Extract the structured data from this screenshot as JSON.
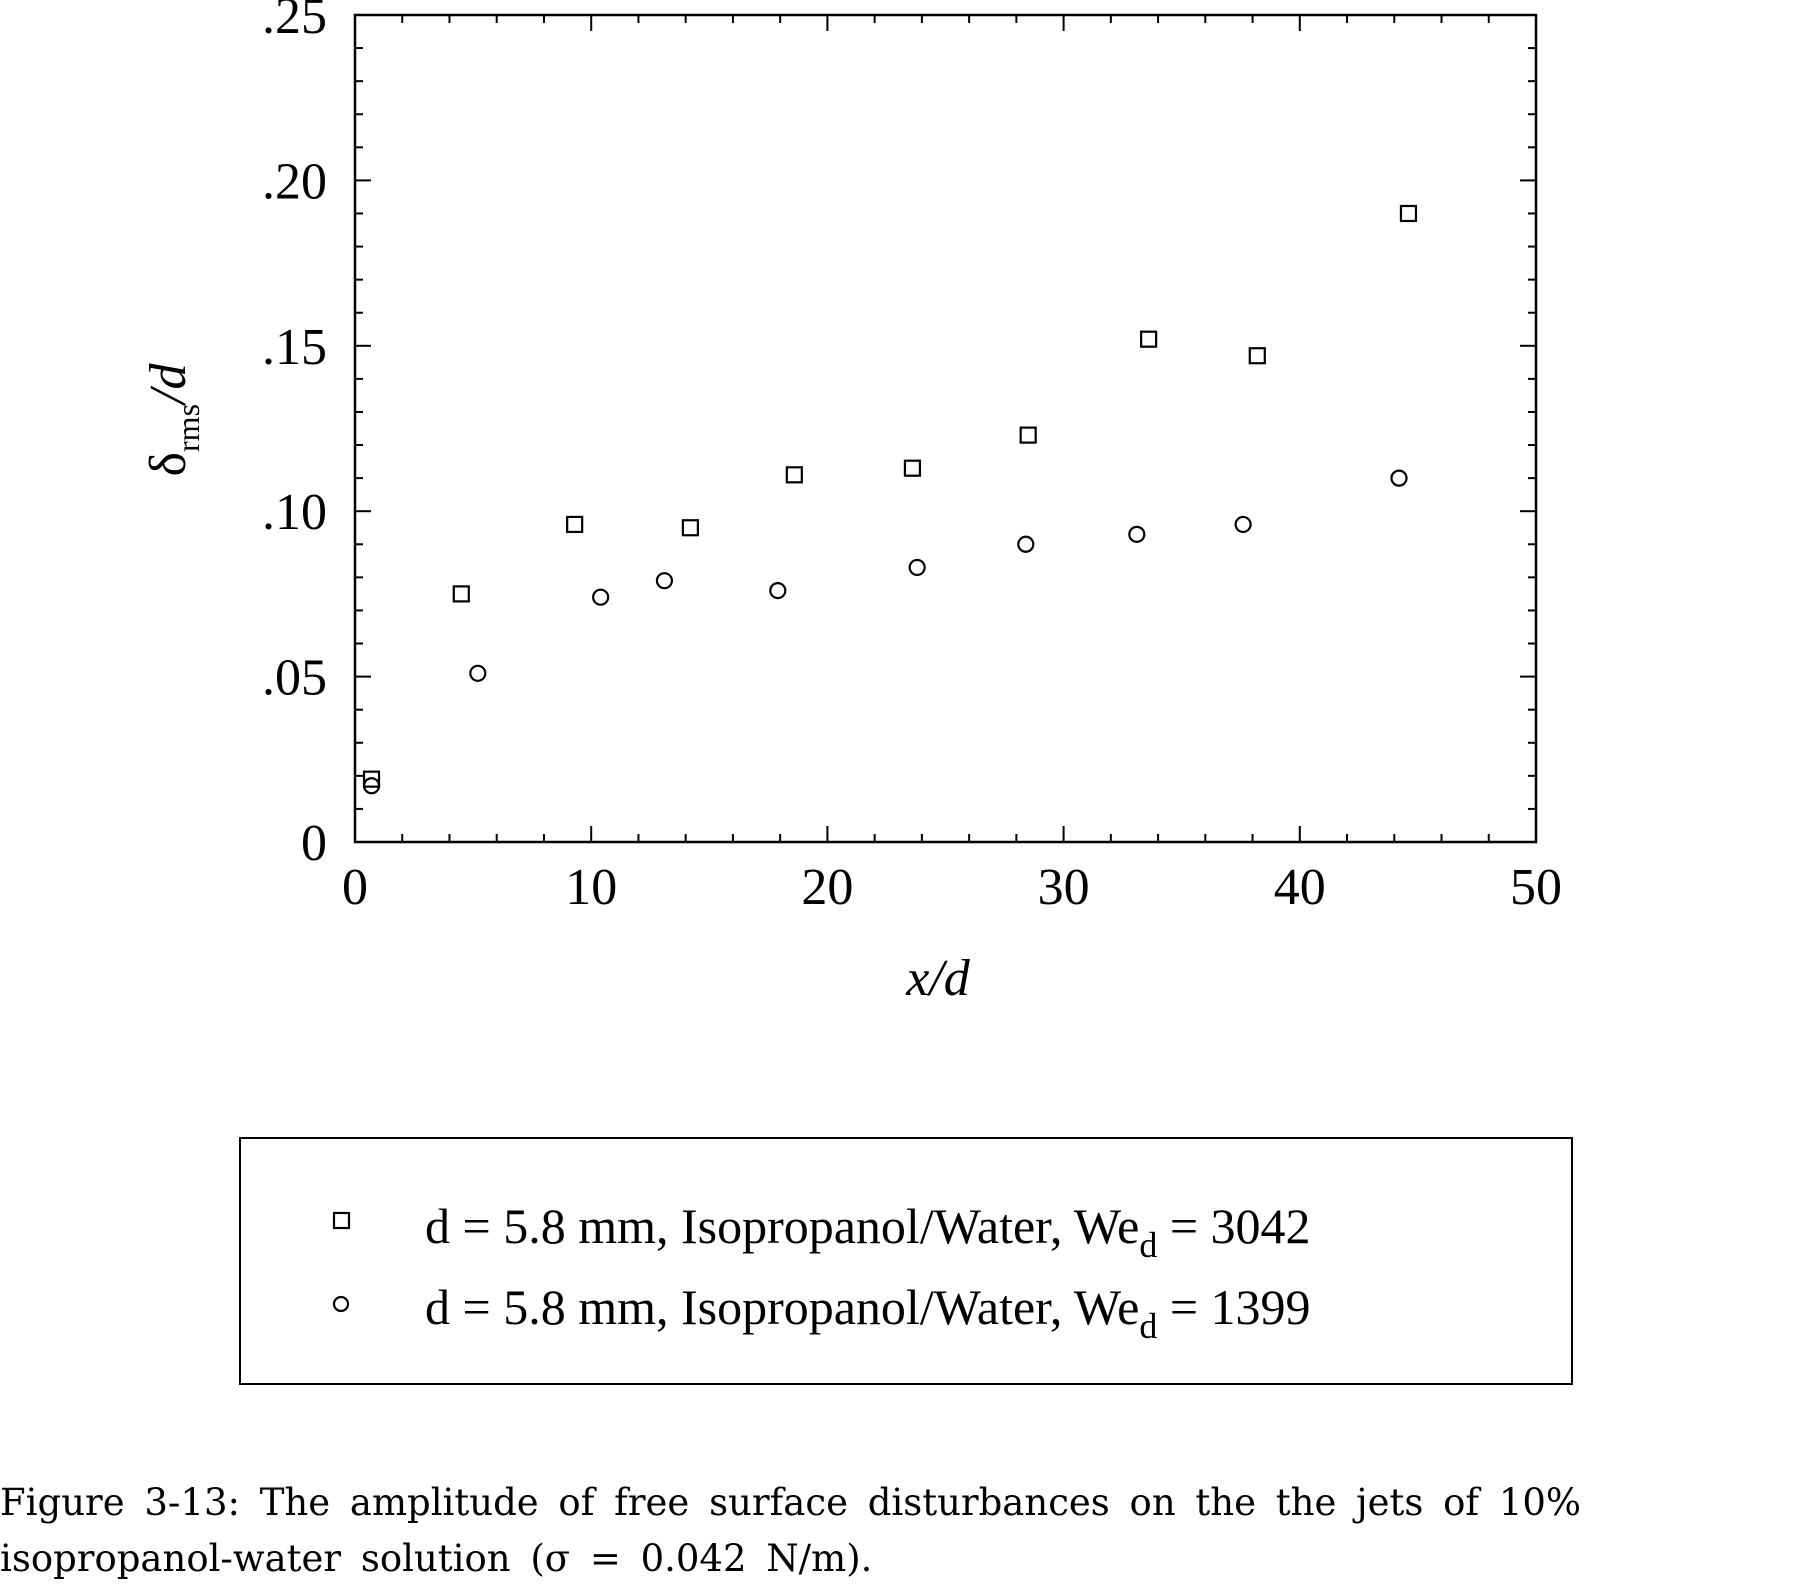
{
  "chart_data": {
    "type": "scatter",
    "xlabel": "x/d",
    "ylabel": {
      "main": "δ",
      "sub": "rms",
      "tail": "/d"
    },
    "xlim": [
      0,
      50
    ],
    "ylim": [
      0,
      0.25
    ],
    "x_ticks": [
      0,
      10,
      20,
      30,
      40,
      50
    ],
    "x_tick_labels": [
      "0",
      "10",
      "20",
      "30",
      "40",
      "50"
    ],
    "y_ticks": [
      0,
      0.05,
      0.1,
      0.15,
      0.2,
      0.25
    ],
    "y_tick_labels": [
      "0",
      ".05",
      ".10",
      ".15",
      ".20",
      ".25"
    ],
    "grid": false,
    "legend_placement": "below plot",
    "series": [
      {
        "marker": "square",
        "legend": {
          "pre": "d = 5.8 mm, Isopropanol/Water, We",
          "sub": "d",
          "post": " = 3042"
        },
        "points": [
          [
            0.7,
            0.019
          ],
          [
            4.5,
            0.075
          ],
          [
            9.3,
            0.096
          ],
          [
            14.2,
            0.095
          ],
          [
            18.6,
            0.111
          ],
          [
            23.6,
            0.113
          ],
          [
            28.5,
            0.123
          ],
          [
            33.6,
            0.152
          ],
          [
            38.2,
            0.147
          ],
          [
            44.6,
            0.19
          ]
        ]
      },
      {
        "marker": "circle",
        "legend": {
          "pre": "d = 5.8 mm, Isopropanol/Water, We",
          "sub": "d",
          "post": " = 1399"
        },
        "points": [
          [
            0.7,
            0.017
          ],
          [
            5.2,
            0.051
          ],
          [
            10.4,
            0.074
          ],
          [
            13.1,
            0.079
          ],
          [
            17.9,
            0.076
          ],
          [
            23.8,
            0.083
          ],
          [
            28.4,
            0.09
          ],
          [
            33.1,
            0.093
          ],
          [
            37.6,
            0.096
          ],
          [
            44.2,
            0.11
          ]
        ]
      }
    ]
  },
  "caption": {
    "line1": "Figure 3-13: The amplitude of free surface disturbances on the the jets of 10%",
    "line2": "isopropanol-water solution (σ = 0.042 N/m)."
  }
}
